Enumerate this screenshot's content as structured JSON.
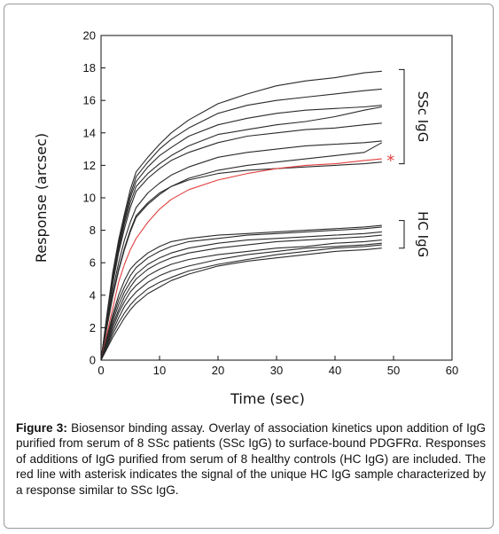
{
  "chart_data": {
    "type": "line",
    "xlabel": "Time (sec)",
    "ylabel": "Response (arcsec)",
    "xlim": [
      0,
      60
    ],
    "ylim": [
      0,
      20
    ],
    "x_ticks": [
      0,
      10,
      20,
      30,
      40,
      50,
      60
    ],
    "y_ticks": [
      0,
      2,
      4,
      6,
      8,
      10,
      12,
      14,
      16,
      18,
      20
    ],
    "grid": false,
    "x": [
      0,
      1,
      2,
      3,
      4,
      5,
      6,
      8,
      10,
      12,
      15,
      20,
      25,
      30,
      35,
      40,
      45,
      48
    ],
    "series": [
      {
        "color": "#2a2a2a",
        "values": [
          0,
          2.8,
          5.4,
          7.4,
          9.0,
          10.5,
          11.6,
          12.5,
          13.3,
          14.0,
          14.8,
          15.8,
          16.4,
          16.9,
          17.2,
          17.4,
          17.7,
          17.8
        ]
      },
      {
        "color": "#2a2a2a",
        "values": [
          0,
          2.7,
          5.2,
          7.2,
          8.8,
          10.2,
          11.3,
          12.2,
          13.0,
          13.6,
          14.3,
          15.2,
          15.7,
          16.0,
          16.2,
          16.4,
          16.6,
          16.7
        ]
      },
      {
        "color": "#2a2a2a",
        "values": [
          0,
          2.6,
          5.0,
          7.0,
          8.6,
          10.0,
          11.0,
          11.9,
          12.6,
          13.1,
          13.8,
          14.5,
          14.9,
          15.2,
          15.4,
          15.5,
          15.6,
          15.7
        ]
      },
      {
        "color": "#2a2a2a",
        "values": [
          0,
          2.5,
          4.8,
          6.8,
          8.4,
          9.7,
          10.7,
          11.5,
          12.1,
          12.6,
          13.2,
          13.9,
          14.2,
          14.5,
          14.7,
          15.0,
          15.4,
          15.6
        ]
      },
      {
        "color": "#2a2a2a",
        "values": [
          0,
          2.4,
          4.7,
          6.6,
          8.1,
          9.4,
          10.4,
          11.2,
          11.8,
          12.3,
          12.8,
          13.4,
          13.8,
          14.0,
          14.2,
          14.3,
          14.5,
          14.6
        ]
      },
      {
        "color": "#2a2a2a",
        "values": [
          0,
          2.2,
          4.3,
          6.0,
          7.4,
          8.5,
          9.4,
          10.3,
          10.9,
          11.4,
          11.9,
          12.5,
          12.8,
          13.0,
          13.2,
          13.3,
          13.4,
          13.5
        ]
      },
      {
        "color": "#2a2a2a",
        "values": [
          0,
          2.0,
          3.9,
          5.5,
          6.8,
          7.9,
          8.8,
          9.6,
          10.2,
          10.7,
          11.2,
          11.7,
          12.0,
          12.2,
          12.4,
          12.6,
          12.8,
          13.4
        ]
      },
      {
        "color": "#2a2a2a",
        "values": [
          0,
          2.1,
          4.0,
          5.6,
          6.9,
          8.0,
          8.9,
          9.7,
          10.3,
          10.7,
          11.1,
          11.5,
          11.7,
          11.8,
          11.9,
          12.0,
          12.1,
          12.2
        ]
      },
      {
        "color": "#e04040",
        "values": [
          0,
          1.6,
          3.2,
          4.8,
          5.9,
          6.8,
          7.5,
          8.5,
          9.3,
          9.9,
          10.5,
          11.1,
          11.5,
          11.8,
          12.0,
          12.1,
          12.3,
          12.4
        ]
      },
      {
        "color": "#2a2a2a",
        "values": [
          0,
          1.4,
          2.8,
          4.0,
          4.9,
          5.6,
          6.0,
          6.6,
          7.0,
          7.3,
          7.5,
          7.7,
          7.8,
          7.9,
          8.0,
          8.1,
          8.2,
          8.3
        ]
      },
      {
        "color": "#2a2a2a",
        "values": [
          0,
          1.3,
          2.6,
          3.7,
          4.5,
          5.2,
          5.7,
          6.3,
          6.7,
          7.0,
          7.3,
          7.5,
          7.7,
          7.8,
          7.9,
          8.0,
          8.1,
          8.2
        ]
      },
      {
        "color": "#2a2a2a",
        "values": [
          0,
          1.2,
          2.4,
          3.4,
          4.2,
          4.8,
          5.3,
          5.9,
          6.3,
          6.6,
          6.9,
          7.2,
          7.4,
          7.5,
          7.6,
          7.7,
          7.8,
          7.9
        ]
      },
      {
        "color": "#2a2a2a",
        "values": [
          0,
          1.1,
          2.2,
          3.1,
          3.9,
          4.5,
          5.0,
          5.6,
          6.0,
          6.3,
          6.6,
          6.9,
          7.1,
          7.3,
          7.4,
          7.5,
          7.6,
          7.7
        ]
      },
      {
        "color": "#2a2a2a",
        "values": [
          0,
          1.0,
          2.0,
          2.9,
          3.6,
          4.2,
          4.6,
          5.2,
          5.6,
          5.9,
          6.2,
          6.5,
          6.7,
          6.9,
          7.0,
          7.2,
          7.3,
          7.4
        ]
      },
      {
        "color": "#2a2a2a",
        "values": [
          0,
          0.9,
          1.8,
          2.6,
          3.3,
          3.8,
          4.2,
          4.8,
          5.2,
          5.5,
          5.8,
          6.2,
          6.5,
          6.7,
          6.9,
          7.0,
          7.1,
          7.2
        ]
      },
      {
        "color": "#2a2a2a",
        "values": [
          0,
          0.8,
          1.6,
          2.3,
          2.9,
          3.4,
          3.8,
          4.4,
          4.8,
          5.1,
          5.5,
          5.9,
          6.2,
          6.5,
          6.7,
          6.9,
          7.0,
          7.1
        ]
      },
      {
        "color": "#2a2a2a",
        "values": [
          0,
          0.7,
          1.4,
          2.0,
          2.6,
          3.1,
          3.5,
          4.1,
          4.5,
          4.9,
          5.3,
          5.8,
          6.1,
          6.3,
          6.5,
          6.7,
          6.8,
          6.9
        ]
      }
    ],
    "brackets": [
      {
        "label": "SSc IgG",
        "range": [
          12.1,
          17.9
        ]
      },
      {
        "label": "HC IgG",
        "range": [
          6.9,
          8.6
        ]
      }
    ],
    "annotation": {
      "text": "*",
      "x": 49.5,
      "y": 12.4,
      "color": "#e04040"
    }
  },
  "caption": {
    "label": "Figure 3:",
    "text": " Biosensor binding assay. Overlay of association kinetics upon addition of IgG purified from serum of 8 SSc patients (SSc IgG) to surface-bound PDGFRα. Responses of additions of IgG purified from serum of 8 healthy controls (HC IgG) are included. The red line with asterisk indicates the signal of the unique HC IgG sample characterized by a response similar to SSc IgG."
  }
}
